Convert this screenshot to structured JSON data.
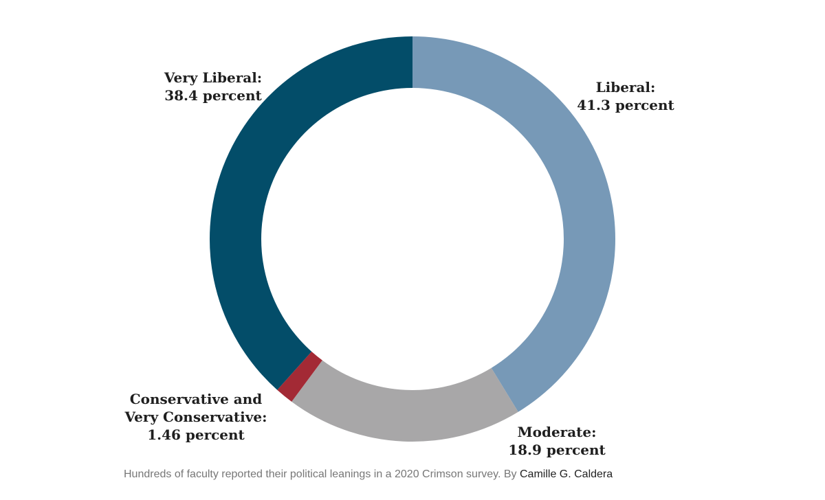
{
  "chart_data": {
    "type": "pie",
    "style": "donut",
    "title": "",
    "slices": [
      {
        "name": "Liberal",
        "label_line1": "Liberal:",
        "label_line2": "41.3 percent",
        "value": 41.3,
        "color": "#7799b7"
      },
      {
        "name": "Moderate",
        "label_line1": "Moderate:",
        "label_line2": "18.9 percent",
        "value": 18.9,
        "color": "#a8a7a8"
      },
      {
        "name": "Conservative and Very Conservative",
        "label_line1": "Conservative and",
        "label_line1b": "Very Conservative:",
        "label_line2": "1.46 percent",
        "value": 1.46,
        "color": "#a32a35"
      },
      {
        "name": "Very Liberal",
        "label_line1": "Very Liberal:",
        "label_line2": "38.4 percent",
        "value": 38.4,
        "color": "#034d69"
      }
    ]
  },
  "caption": {
    "text": "Hundreds of faculty reported their political leanings in a 2020 Crimson survey. By ",
    "author": "Camille G. Caldera"
  }
}
